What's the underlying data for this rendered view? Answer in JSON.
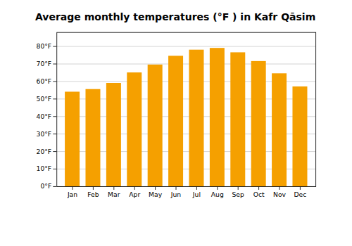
{
  "chart_data": {
    "type": "bar",
    "title": "Average monthly temperatures (°F ) in Kafr Qāsim",
    "categories": [
      "Jan",
      "Feb",
      "Mar",
      "Apr",
      "May",
      "Jun",
      "Jul",
      "Aug",
      "Sep",
      "Oct",
      "Nov",
      "Dec"
    ],
    "values": [
      54,
      55.5,
      59,
      65,
      69.5,
      74.5,
      78,
      79,
      76.5,
      71.5,
      64.5,
      57
    ],
    "color": "#F5A000",
    "ylim": [
      0,
      88
    ],
    "yticks": [
      {
        "value": 0,
        "label": "0°F"
      },
      {
        "value": 10,
        "label": "10°F"
      },
      {
        "value": 20,
        "label": "20°F"
      },
      {
        "value": 30,
        "label": "30°F"
      },
      {
        "value": 40,
        "label": "40°F"
      },
      {
        "value": 50,
        "label": "50°F"
      },
      {
        "value": 60,
        "label": "60°F"
      },
      {
        "value": 70,
        "label": "70°F"
      },
      {
        "value": 80,
        "label": "80°F"
      }
    ],
    "grid": true
  }
}
